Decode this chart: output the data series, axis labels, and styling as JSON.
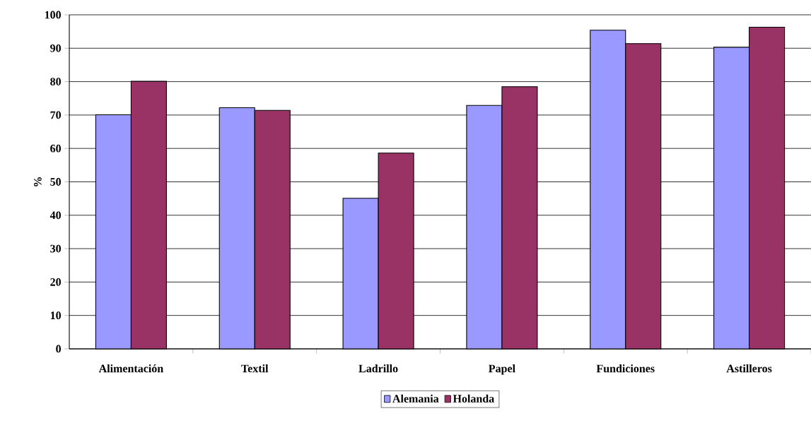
{
  "chart_data": {
    "type": "bar",
    "ylabel": "%",
    "categories": [
      "Alimentación",
      "Textil",
      "Ladrillo",
      "Papel",
      "Fundiciones",
      "Astilleros"
    ],
    "series": [
      {
        "name": "Alemania",
        "color": "#9999ff",
        "values": [
          70.1,
          72.2,
          45.1,
          72.9,
          95.4,
          90.3
        ]
      },
      {
        "name": "Holanda",
        "color": "#993366",
        "values": [
          80.1,
          71.4,
          58.6,
          78.5,
          91.4,
          96.3
        ]
      }
    ],
    "ylim": [
      0,
      100
    ],
    "yticks": [
      0,
      10,
      20,
      30,
      40,
      50,
      60,
      70,
      80,
      90,
      100
    ],
    "grid": "y",
    "legend": "bottom"
  }
}
